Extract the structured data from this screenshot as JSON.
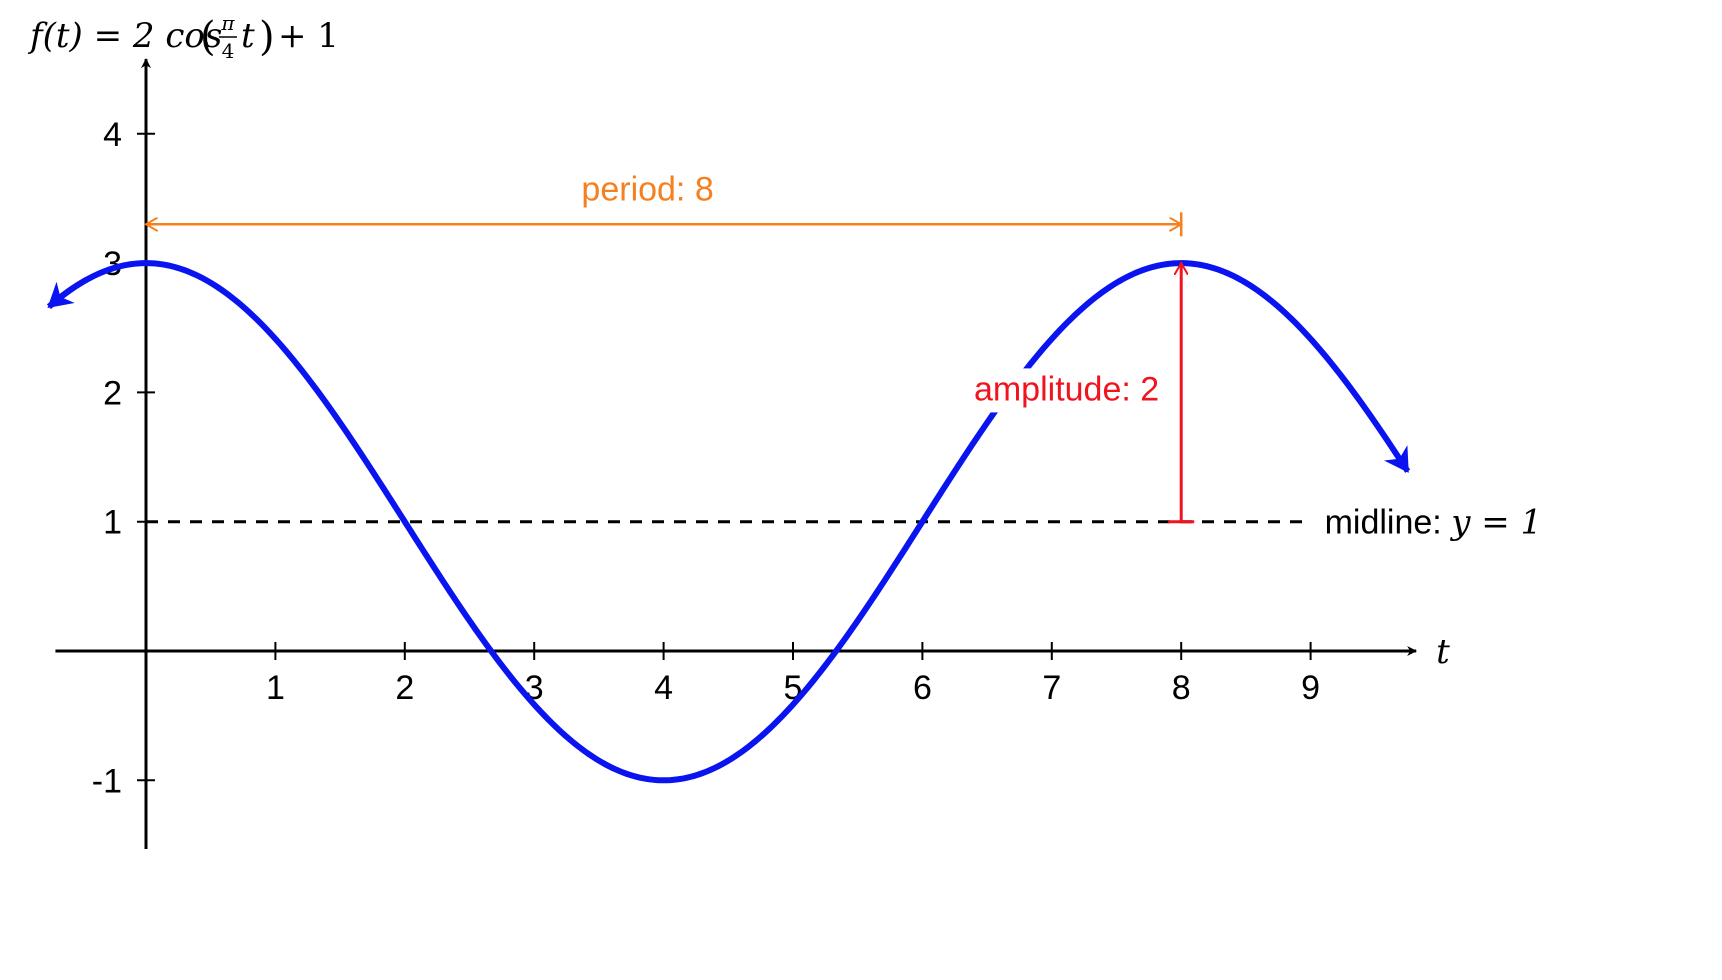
{
  "chart_data": {
    "type": "line",
    "title": "f(t) = 2 cos(π/4 t) + 1",
    "title_parts": {
      "lhs": "f(t) = 2 cos",
      "frac_num": "π",
      "frac_den": "4",
      "var": "t",
      "tail": "+ 1"
    },
    "xlabel": "t",
    "ylabel": "",
    "xlim": [
      -0.7,
      9.8
    ],
    "ylim": [
      -1.5,
      4.5
    ],
    "x_ticks": [
      1,
      2,
      3,
      4,
      5,
      6,
      7,
      8,
      9
    ],
    "x_tick_labels": [
      "1",
      "2",
      "3",
      "4",
      "5",
      "6",
      "7",
      "8",
      "9"
    ],
    "y_ticks": [
      -1,
      1,
      2,
      3,
      4
    ],
    "y_tick_labels": [
      "-1",
      "1",
      "2",
      "3",
      "4"
    ],
    "grid": false,
    "series": [
      {
        "function": "2*cos(pi/4*t)+1",
        "amplitude": 2,
        "period": 8,
        "midline": 1,
        "domain": [
          -0.75,
          9.75
        ],
        "color": "#0a14f0"
      }
    ],
    "annotations": {
      "period": {
        "text": "period: 8",
        "from_x": 0,
        "to_x": 8,
        "y": 3.3,
        "color": "#f6801f"
      },
      "amplitude": {
        "text": "amplitude: 2",
        "x": 8,
        "from_y": 1,
        "to_y": 3,
        "color": "#f0141e"
      },
      "midline": {
        "text_prefix": "midline:",
        "equation": "y = 1",
        "y": 1,
        "color": "#000000"
      }
    }
  }
}
